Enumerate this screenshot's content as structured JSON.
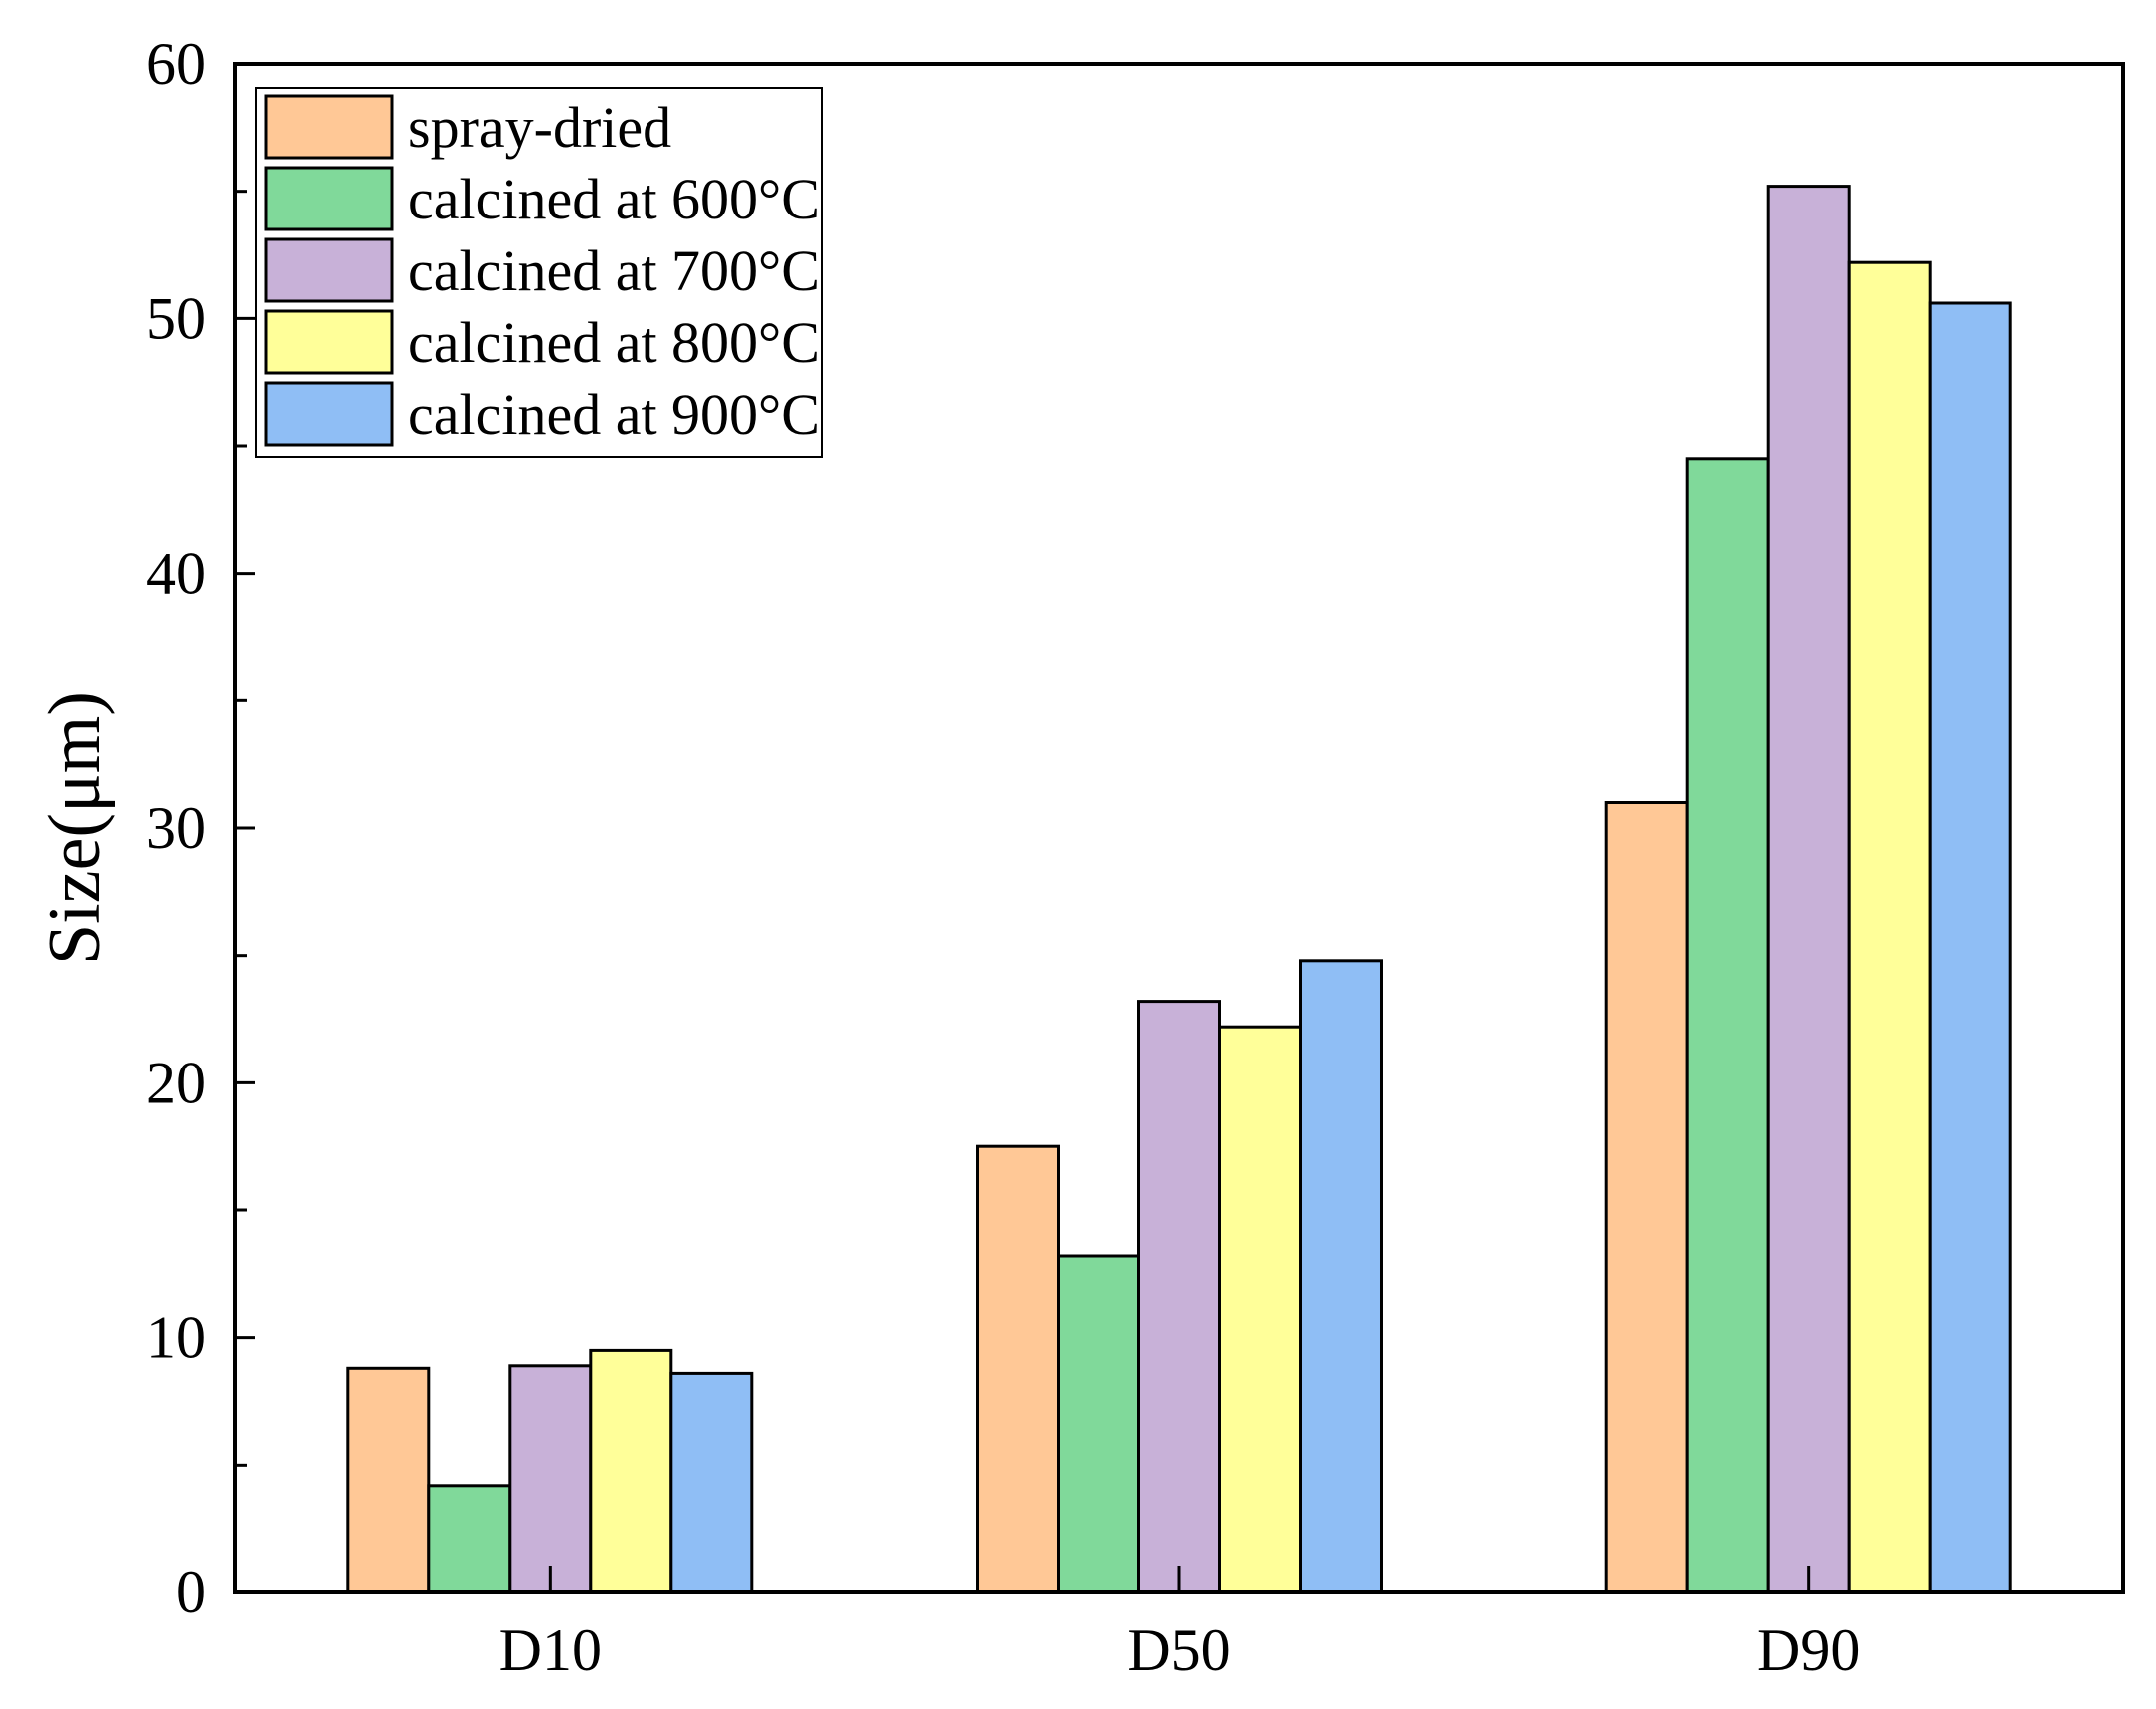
{
  "chart_data": {
    "type": "bar",
    "title": "",
    "xlabel": "",
    "ylabel": "Size(μm)",
    "ylim": [
      0,
      60
    ],
    "yticks": [
      0,
      10,
      20,
      30,
      40,
      50,
      60
    ],
    "grid": false,
    "legend_position": "top-left",
    "categories": [
      "D10",
      "D50",
      "D90"
    ],
    "series": [
      {
        "name": "spray-dried",
        "color": "#FFC896",
        "values": [
          8.8,
          17.5,
          31.0
        ]
      },
      {
        "name": "calcined at 600°C",
        "color": "#80D99A",
        "values": [
          4.2,
          13.2,
          44.5
        ]
      },
      {
        "name": "calcined at 700°C",
        "color": "#C8B1D8",
        "values": [
          8.9,
          23.2,
          55.2
        ]
      },
      {
        "name": "calcined at 800°C",
        "color": "#FFFF99",
        "values": [
          9.5,
          22.2,
          52.2
        ]
      },
      {
        "name": "calcined at 900°C",
        "color": "#8FBEF5",
        "values": [
          8.6,
          24.8,
          50.6
        ]
      }
    ]
  }
}
